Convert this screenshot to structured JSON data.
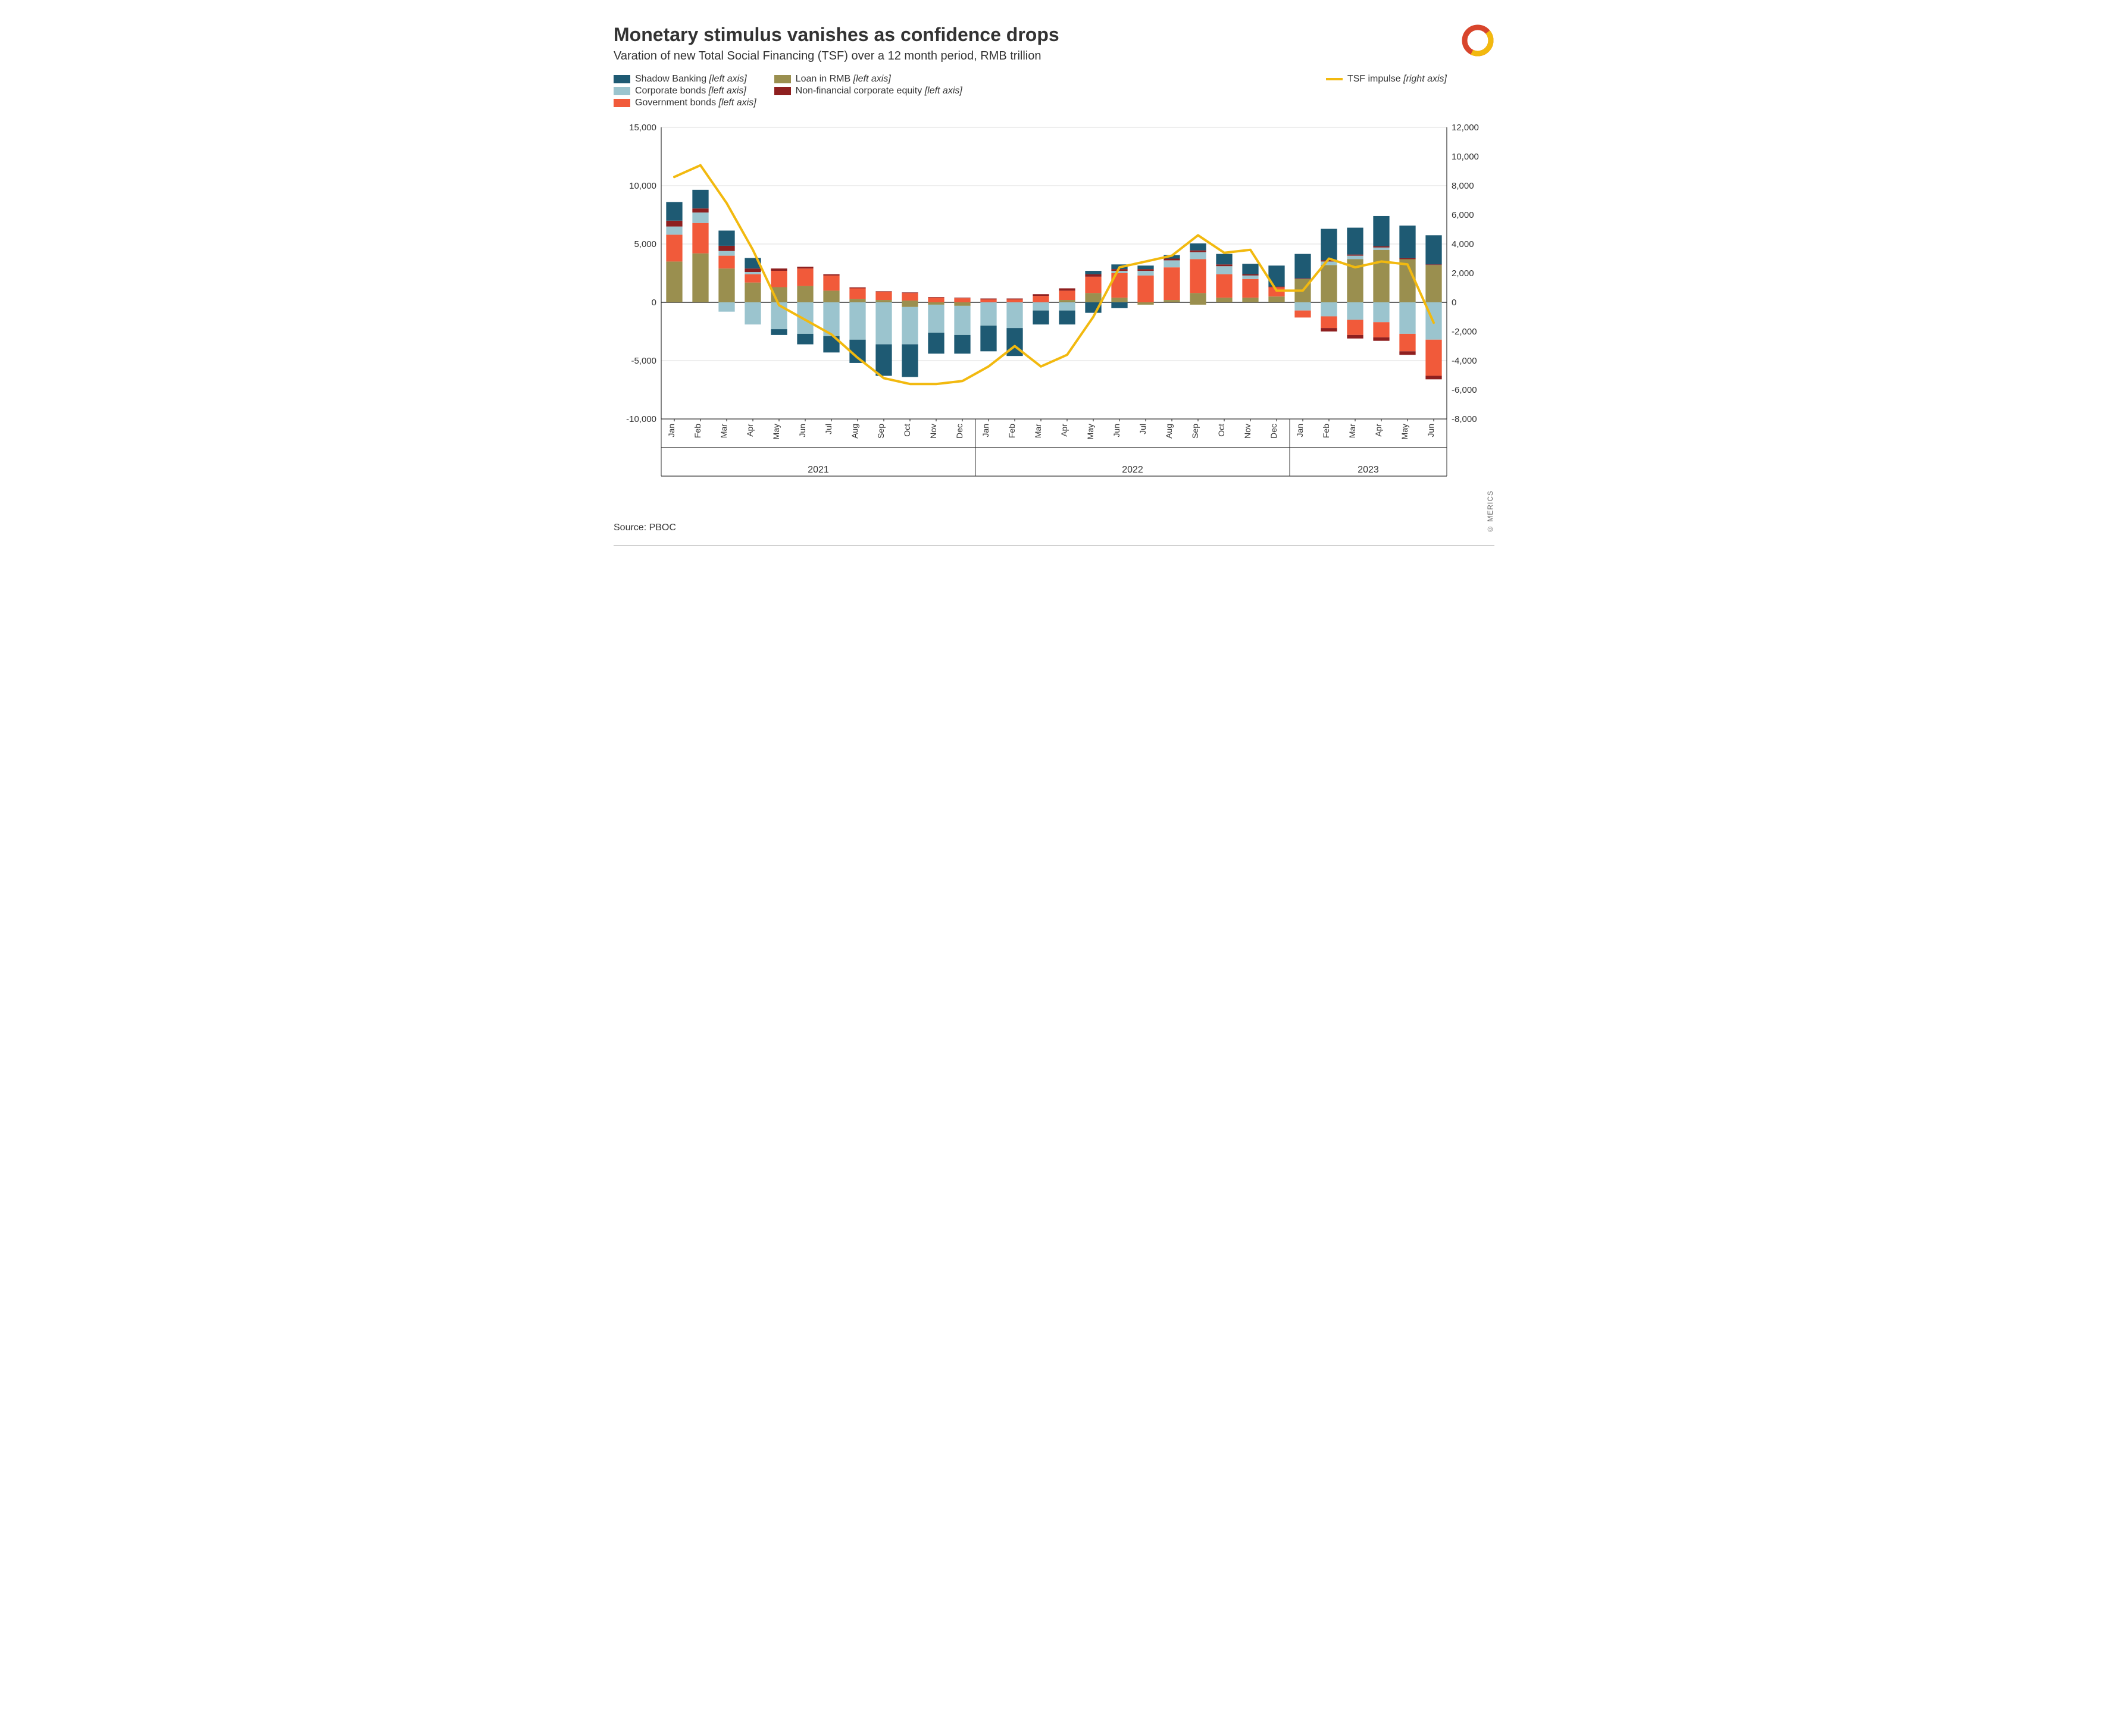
{
  "title": "Monetary stimulus vanishes as confidence drops",
  "subtitle": "Varation of new Total Social Financing (TSF) over a 12 month period, RMB trillion",
  "source": "Source: PBOC",
  "copyright": "© MERICS",
  "legend": {
    "shadow": {
      "label": "Shadow Banking",
      "axis": "[left axis]"
    },
    "loan": {
      "label": "Loan in RMB",
      "axis": "[left axis]"
    },
    "tsf": {
      "label": "TSF impulse",
      "axis": "[right axis]"
    },
    "corp": {
      "label": "Corporate bonds",
      "axis": "[left axis]"
    },
    "nfc": {
      "label": "Non-financial corporate equity",
      "axis": "[left axis]"
    },
    "gov": {
      "label": "Government bonds",
      "axis": "[left axis]"
    }
  },
  "chart": {
    "type": "stacked-bar-with-line",
    "background_color": "#ffffff",
    "grid_color": "#dddddd",
    "axis_color": "#333333",
    "left_axis": {
      "min": -10000,
      "max": 15000,
      "step": 5000
    },
    "right_axis": {
      "min": -8000,
      "max": 12000,
      "step": 2000
    },
    "bar_width_ratio": 0.62,
    "line_width": 4,
    "colors": {
      "shadow": "#1e5a73",
      "corp": "#9bc4ce",
      "gov": "#f15a3a",
      "loan": "#9a8f4f",
      "nfc": "#8e1f1f",
      "tsf": "#f2b90f"
    },
    "years": [
      {
        "label": "2021",
        "months": [
          "Jan",
          "Feb",
          "Mar",
          "Apr",
          "May",
          "Jun",
          "Jul",
          "Aug",
          "Sep",
          "Oct",
          "Nov",
          "Dec"
        ]
      },
      {
        "label": "2022",
        "months": [
          "Jan",
          "Feb",
          "Mar",
          "Apr",
          "May",
          "Jun",
          "Jul",
          "Aug",
          "Sep",
          "Oct",
          "Nov",
          "Dec"
        ]
      },
      {
        "label": "2023",
        "months": [
          "Jan",
          "Feb",
          "Mar",
          "Apr",
          "May",
          "Jun"
        ]
      }
    ],
    "series": [
      {
        "shadow": 1600,
        "corp": 700,
        "gov": 2300,
        "loan": 3500,
        "nfc": 500,
        "tsf": 8600
      },
      {
        "shadow": 1600,
        "corp": 900,
        "gov": 2600,
        "loan": 4200,
        "nfc": 350,
        "tsf": 9400
      },
      {
        "shadow": 1300,
        "corp": 400,
        "gov": 1100,
        "loan": 2900,
        "nfc": 450,
        "neg_corp": -800,
        "tsf": 6800
      },
      {
        "shadow": 900,
        "corp": 200,
        "gov": 700,
        "loan": 1700,
        "nfc": 300,
        "neg_corp": -1900,
        "tsf": 3600
      },
      {
        "gov": 1400,
        "loan": 1300,
        "nfc": 200,
        "neg_shadow": -500,
        "neg_corp": -2300,
        "tsf": -200
      },
      {
        "gov": 1500,
        "loan": 1400,
        "nfc": 150,
        "neg_shadow": -900,
        "neg_corp": -2700,
        "tsf": -1200
      },
      {
        "gov": 1300,
        "loan": 1000,
        "nfc": 100,
        "neg_shadow": -1400,
        "neg_corp": -2900,
        "tsf": -2200
      },
      {
        "gov": 900,
        "loan": 300,
        "nfc": 80,
        "neg_shadow": -2000,
        "neg_corp": -3200,
        "tsf": -3800
      },
      {
        "gov": 700,
        "loan": 200,
        "nfc": 50,
        "neg_shadow": -2700,
        "neg_corp": -3600,
        "tsf": -5200
      },
      {
        "gov": 650,
        "loan": 150,
        "nfc": 50,
        "neg_shadow": -2800,
        "neg_corp": -3200,
        "neg_loan": -400,
        "tsf": -5600
      },
      {
        "gov": 400,
        "nfc": 50,
        "neg_shadow": -1800,
        "neg_corp": -2400,
        "neg_loan": -200,
        "tsf": -5600
      },
      {
        "gov": 350,
        "nfc": 50,
        "neg_shadow": -1600,
        "neg_corp": -2500,
        "neg_loan": -300,
        "tsf": -5400
      },
      {
        "gov": 250,
        "nfc": 80,
        "neg_shadow": -2200,
        "neg_corp": -2000,
        "tsf": -4400
      },
      {
        "gov": 250,
        "nfc": 80,
        "neg_shadow": -2400,
        "neg_corp": -2200,
        "tsf": -3000
      },
      {
        "gov": 550,
        "nfc": 150,
        "neg_shadow": -1200,
        "neg_corp": -700,
        "tsf": -4400
      },
      {
        "gov": 800,
        "loan": 200,
        "nfc": 200,
        "neg_shadow": -1200,
        "neg_corp": -700,
        "tsf": -3600
      },
      {
        "shadow": 300,
        "gov": 1400,
        "loan": 800,
        "nfc": 200,
        "neg_shadow": -900,
        "tsf": -1000
      },
      {
        "shadow": 400,
        "corp": 200,
        "gov": 2100,
        "loan": 400,
        "nfc": 150,
        "neg_shadow": -500,
        "tsf": 2400
      },
      {
        "shadow": 300,
        "corp": 400,
        "gov": 2300,
        "nfc": 150,
        "neg_loan": -200,
        "tsf": 2800
      },
      {
        "shadow": 300,
        "corp": 600,
        "gov": 2800,
        "loan": 200,
        "nfc": 150,
        "tsf": 3200
      },
      {
        "shadow": 600,
        "corp": 600,
        "gov": 2900,
        "loan": 800,
        "nfc": 150,
        "neg_loan": -200,
        "tsf": 4600
      },
      {
        "shadow": 900,
        "corp": 700,
        "gov": 2000,
        "loan": 400,
        "nfc": 150,
        "tsf": 3400
      },
      {
        "shadow": 900,
        "corp": 300,
        "gov": 1600,
        "loan": 400,
        "nfc": 100,
        "tsf": 3600
      },
      {
        "shadow": 1800,
        "gov": 800,
        "loan": 500,
        "nfc": 50,
        "tsf": 800
      },
      {
        "shadow": 2100,
        "loan": 2000,
        "nfc": 50,
        "neg_corp": -700,
        "neg_gov": -600,
        "tsf": 800
      },
      {
        "shadow": 2700,
        "corp": 300,
        "loan": 3200,
        "nfc": 100,
        "neg_corp": -1200,
        "neg_gov": -1000,
        "neg_nfc": -300,
        "tsf": 3000
      },
      {
        "shadow": 2300,
        "corp": 300,
        "loan": 3700,
        "nfc": 100,
        "neg_corp": -1500,
        "neg_gov": -1300,
        "neg_nfc": -300,
        "tsf": 2400
      },
      {
        "shadow": 2600,
        "corp": 200,
        "loan": 4500,
        "nfc": 100,
        "neg_corp": -1700,
        "neg_gov": -1300,
        "neg_nfc": -300,
        "tsf": 2800
      },
      {
        "shadow": 2800,
        "loan": 3700,
        "nfc": 80,
        "neg_corp": -2700,
        "neg_gov": -1500,
        "neg_nfc": -300,
        "tsf": 2600
      },
      {
        "shadow": 2500,
        "loan": 3200,
        "nfc": 50,
        "neg_corp": -3200,
        "neg_gov": -3100,
        "neg_nfc": -300,
        "tsf": -1400
      }
    ]
  }
}
